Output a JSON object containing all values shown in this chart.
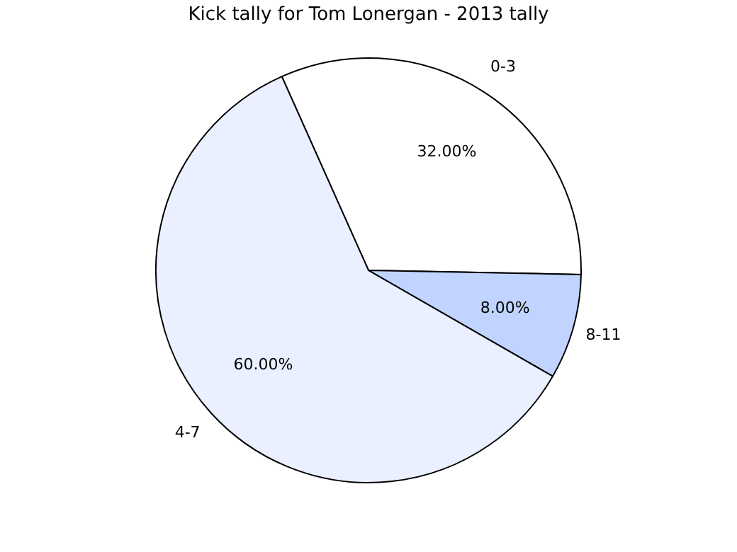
{
  "chart_data": {
    "type": "pie",
    "title": "Kick tally for Tom Lonergan - 2013 tally",
    "categories": [
      "0-3",
      "8-11",
      "4-7"
    ],
    "values": [
      32,
      8,
      60
    ],
    "colors": [
      "#ffffff",
      "#c0d4ff",
      "#eaf0ff"
    ],
    "value_labels": [
      "32.00%",
      "8.00%",
      "60.00%"
    ],
    "legend": false
  }
}
